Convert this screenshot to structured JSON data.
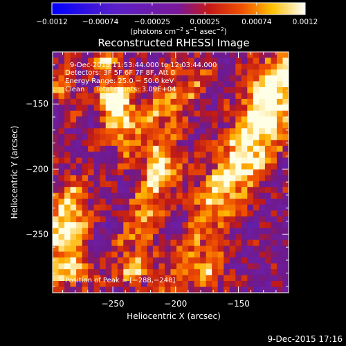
{
  "chart_data": {
    "type": "heatmap",
    "title": "Reconstructed RHESSI Image",
    "xlabel": "Heliocentric X (arcsec)",
    "ylabel": "Heliocentric Y (arcsec)",
    "xlim": [
      -298,
      -110
    ],
    "ylim": [
      -295,
      -110
    ],
    "x_ticks": [
      -250,
      -200,
      -150
    ],
    "y_ticks": [
      -250,
      -200,
      -150
    ],
    "x_tick_labels": [
      "−250",
      "−200",
      "−150"
    ],
    "y_tick_labels": [
      "−250",
      "−200",
      "−150"
    ],
    "colorbar": {
      "range": [
        -0.0012,
        0.0012
      ],
      "ticks": [
        -0.0012,
        -0.00074,
        -0.00025,
        0.00025,
        0.00074,
        0.0012
      ],
      "tick_labels": [
        "−0.0012",
        "−0.00074",
        "−0.00025",
        "0.00025",
        "0.00074",
        "0.0012"
      ],
      "unit_main": "(photons cm",
      "unit_exp1": "−2",
      "unit_mid1": " s",
      "unit_exp2": "−1",
      "unit_mid2": " asec",
      "unit_exp3": "−2",
      "unit_end": ")",
      "colormap": "blue-purple-red-yellow-white"
    },
    "annotations": {
      "time": "9-Dec-2015 11:53:44.000 to 12:03:44.000",
      "detectors": "Detectors: 3F 5F 6F 7F 8F, Att 0",
      "energy": "Energy Range: 25.0 − 50.0 keV",
      "clean": "Clean     Total counts: 3.09E+04",
      "peak": "Position of Peak = [−288,−248]"
    },
    "peak": {
      "x": -288,
      "y": -248
    },
    "grid": false,
    "features": [
      {
        "x": -155,
        "y": -205,
        "sx": 14,
        "sy": 60,
        "angle": -35,
        "amp": 1.0
      },
      {
        "x": -125,
        "y": -135,
        "sx": 12,
        "sy": 22,
        "angle": -20,
        "amp": 0.85
      },
      {
        "x": -288,
        "y": -248,
        "sx": 12,
        "sy": 26,
        "angle": -10,
        "amp": 1.05
      },
      {
        "x": -220,
        "y": -230,
        "sx": 10,
        "sy": 30,
        "angle": -25,
        "amp": 0.85
      },
      {
        "x": -245,
        "y": -160,
        "sx": 10,
        "sy": 18,
        "angle": 0,
        "amp": 0.75
      },
      {
        "x": -250,
        "y": -145,
        "sx": 9,
        "sy": 10,
        "angle": 0,
        "amp": 0.7
      },
      {
        "x": -205,
        "y": -150,
        "sx": 12,
        "sy": 30,
        "angle": -40,
        "amp": 0.6
      },
      {
        "x": -255,
        "y": -115,
        "sx": 8,
        "sy": 8,
        "angle": 0,
        "amp": 0.6
      },
      {
        "x": -175,
        "y": -280,
        "sx": 14,
        "sy": 12,
        "angle": 0,
        "amp": 0.55
      },
      {
        "x": -275,
        "y": -280,
        "sx": 10,
        "sy": 8,
        "angle": 0,
        "amp": 0.5
      },
      {
        "x": -235,
        "y": -275,
        "sx": 10,
        "sy": 8,
        "angle": 0,
        "amp": 0.45
      },
      {
        "x": -290,
        "y": -135,
        "sx": 8,
        "sy": 14,
        "angle": 0,
        "amp": 0.5
      },
      {
        "x": -215,
        "y": -195,
        "sx": 8,
        "sy": 10,
        "angle": 0,
        "amp": 0.6
      }
    ]
  },
  "footer": {
    "date": "9-Dec-2015 17:16"
  }
}
